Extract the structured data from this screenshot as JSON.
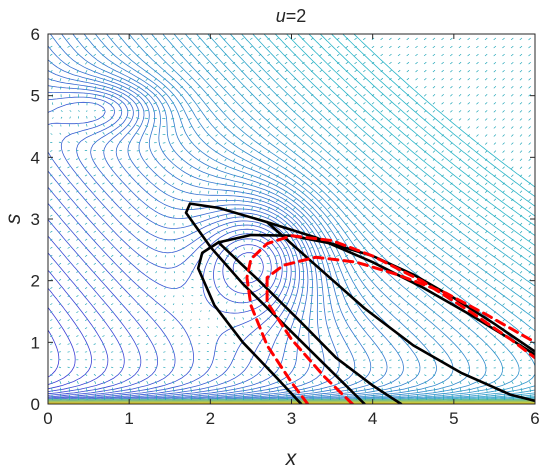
{
  "chart_data": {
    "type": "contour",
    "title_variable": "u",
    "title_value": "=2",
    "xlabel": "x",
    "ylabel": "s",
    "xlim": [
      0,
      6
    ],
    "ylim": [
      0,
      6
    ],
    "xticks": [
      0,
      1,
      2,
      3,
      4,
      5,
      6
    ],
    "yticks": [
      0,
      1,
      2,
      3,
      4,
      5,
      6
    ],
    "grid": false,
    "legend": "none",
    "contour_field": {
      "description_free": true,
      "min_center": [
        2.6,
        2.4
      ],
      "second_min_center": [
        0.7,
        4.8
      ],
      "color_low": "#3b3bd6",
      "color_high": "#2bb5c8",
      "color_bottom": "#f4d21a"
    },
    "quiver_color": "#21a6b8",
    "series": [
      {
        "style": "solid",
        "color": "#000000",
        "points": [
          [
            3.12,
            0.0
          ],
          [
            2.8,
            0.45
          ],
          [
            2.4,
            1.0
          ],
          [
            2.05,
            1.6
          ],
          [
            1.85,
            2.2
          ],
          [
            1.9,
            2.45
          ],
          [
            2.1,
            2.62
          ],
          [
            2.5,
            2.74
          ],
          [
            3.0,
            2.73
          ],
          [
            3.5,
            2.6
          ],
          [
            4.0,
            2.4
          ],
          [
            4.5,
            2.1
          ],
          [
            5.0,
            1.72
          ],
          [
            5.5,
            1.3
          ],
          [
            6.0,
            0.85
          ]
        ]
      },
      {
        "style": "solid",
        "color": "#000000",
        "points": [
          [
            3.9,
            0.0
          ],
          [
            3.4,
            0.65
          ],
          [
            2.9,
            1.3
          ],
          [
            2.4,
            1.95
          ],
          [
            2.0,
            2.55
          ],
          [
            1.7,
            3.1
          ],
          [
            1.75,
            3.25
          ],
          [
            2.1,
            3.18
          ],
          [
            2.7,
            2.95
          ],
          [
            3.3,
            2.7
          ],
          [
            4.0,
            2.3
          ],
          [
            4.6,
            1.9
          ],
          [
            5.2,
            1.45
          ],
          [
            5.7,
            1.05
          ],
          [
            6.0,
            0.8
          ]
        ]
      },
      {
        "style": "solid",
        "color": "#000000",
        "points": [
          [
            2.1,
            2.62
          ],
          [
            2.6,
            2.0
          ],
          [
            3.1,
            1.35
          ],
          [
            3.55,
            0.75
          ],
          [
            4.0,
            0.3
          ],
          [
            4.35,
            0.0
          ]
        ]
      },
      {
        "style": "solid",
        "color": "#000000",
        "points": [
          [
            2.7,
            2.95
          ],
          [
            3.3,
            2.25
          ],
          [
            3.9,
            1.55
          ],
          [
            4.5,
            0.95
          ],
          [
            5.1,
            0.5
          ],
          [
            5.7,
            0.15
          ],
          [
            6.0,
            0.05
          ]
        ]
      },
      {
        "style": "dashed",
        "color": "#ff0000",
        "points": [
          [
            3.2,
            0.0
          ],
          [
            3.0,
            0.35
          ],
          [
            2.7,
            0.95
          ],
          [
            2.5,
            1.6
          ],
          [
            2.45,
            2.05
          ],
          [
            2.5,
            2.35
          ],
          [
            2.7,
            2.6
          ],
          [
            3.0,
            2.73
          ],
          [
            3.5,
            2.65
          ],
          [
            4.0,
            2.4
          ],
          [
            4.6,
            2.0
          ],
          [
            5.2,
            1.5
          ],
          [
            5.7,
            1.05
          ],
          [
            6.0,
            0.75
          ]
        ]
      },
      {
        "style": "dashed",
        "color": "#ff0000",
        "points": [
          [
            3.75,
            0.0
          ],
          [
            3.4,
            0.45
          ],
          [
            3.0,
            1.05
          ],
          [
            2.7,
            1.65
          ],
          [
            2.7,
            2.05
          ],
          [
            2.9,
            2.25
          ],
          [
            3.3,
            2.38
          ],
          [
            3.8,
            2.3
          ],
          [
            4.3,
            2.1
          ],
          [
            4.9,
            1.8
          ],
          [
            5.4,
            1.45
          ],
          [
            6.0,
            1.0
          ]
        ]
      }
    ]
  }
}
